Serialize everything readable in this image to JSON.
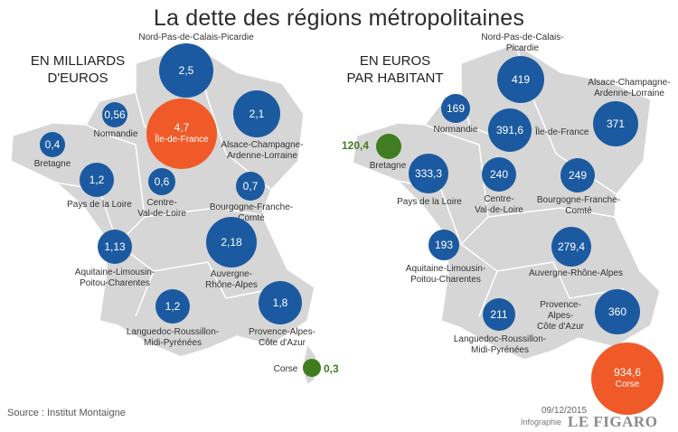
{
  "title": "La dette des régions métropolitaines",
  "left_map": {
    "heading": [
      "EN MILLIARDS",
      "D'EUROS"
    ],
    "regions": [
      {
        "id": "npdcp",
        "name": [
          "Nord-Pas-de-Calais-Picardie"
        ],
        "value": "2,5",
        "color": "blue"
      },
      {
        "id": "normandie",
        "name": [
          "Normandie"
        ],
        "value": "0,56",
        "color": "blue"
      },
      {
        "id": "idf",
        "name": [
          "Île-de-France"
        ],
        "value": "4,7",
        "color": "orange"
      },
      {
        "id": "acal",
        "name": [
          "Alsace-Champagne-",
          "Ardenne-Lorraine"
        ],
        "value": "2,1",
        "color": "blue"
      },
      {
        "id": "bretagne",
        "name": [
          "Bretagne"
        ],
        "value": "0,4",
        "color": "blue"
      },
      {
        "id": "pdl",
        "name": [
          "Pays de la Loire"
        ],
        "value": "1,2",
        "color": "blue"
      },
      {
        "id": "cvl",
        "name": [
          "Centre-",
          "Val-de-Loire"
        ],
        "value": "0,6",
        "color": "blue"
      },
      {
        "id": "bfc",
        "name": [
          "Bourgogne-Franche-Comté"
        ],
        "value": "0,7",
        "color": "blue"
      },
      {
        "id": "alpc",
        "name": [
          "Aquitaine-Limousin-",
          "Poitou-Charentes"
        ],
        "value": "1,13",
        "color": "blue"
      },
      {
        "id": "ara",
        "name": [
          "Auvergne-",
          "Rhône-Alpes"
        ],
        "value": "2,18",
        "color": "blue"
      },
      {
        "id": "lrmp",
        "name": [
          "Languedoc-Roussillon-",
          "Midi-Pyrénées"
        ],
        "value": "1,2",
        "color": "blue"
      },
      {
        "id": "paca",
        "name": [
          "Provence-Alpes-",
          "Côte d'Azur"
        ],
        "value": "1,8",
        "color": "blue"
      },
      {
        "id": "corse",
        "name": [
          "Corse"
        ],
        "value": "0,3",
        "color": "green"
      }
    ]
  },
  "right_map": {
    "heading": [
      "EN EUROS",
      "PAR HABITANT"
    ],
    "regions": [
      {
        "id": "npdcp",
        "name": [
          "Nord-Pas-de-Calais-",
          "Picardie"
        ],
        "value": "419",
        "color": "blue"
      },
      {
        "id": "normandie",
        "name": [
          "Normandie"
        ],
        "value": "169",
        "color": "blue"
      },
      {
        "id": "idf",
        "name": [
          "Île-de-France"
        ],
        "value": "391,6",
        "color": "blue"
      },
      {
        "id": "acal",
        "name": [
          "Alsace-Champagne-",
          "Ardenne-Lorraine"
        ],
        "value": "371",
        "color": "blue"
      },
      {
        "id": "bretagne",
        "name": [
          "Bretagne"
        ],
        "value": "120,4",
        "color": "green"
      },
      {
        "id": "pdl",
        "name": [
          "Pays de la Loire"
        ],
        "value": "333,3",
        "color": "blue"
      },
      {
        "id": "cvl",
        "name": [
          "Centre-",
          "Val-de-Loire"
        ],
        "value": "240",
        "color": "blue"
      },
      {
        "id": "bfc",
        "name": [
          "Bourgogne-Franche-Comté"
        ],
        "value": "249",
        "color": "blue"
      },
      {
        "id": "alpc",
        "name": [
          "Aquitaine-Limousin-",
          "Poitou-Charentes"
        ],
        "value": "193",
        "color": "blue"
      },
      {
        "id": "ara",
        "name": [
          "Auvergne-Rhône-Alpes"
        ],
        "value": "279,4",
        "color": "blue"
      },
      {
        "id": "lrmp",
        "name": [
          "Languedoc-Roussillon-",
          "Midi-Pyrénées"
        ],
        "value": "211",
        "color": "blue"
      },
      {
        "id": "paca",
        "name": [
          "Provence-Alpes-",
          "Côte d'Azur"
        ],
        "value": "360",
        "color": "blue"
      },
      {
        "id": "corse",
        "name": [
          "Corse"
        ],
        "value": "934,6",
        "color": "orange"
      }
    ]
  },
  "colors": {
    "blue": "#1b5aa0",
    "orange": "#f05a28",
    "green": "#3f7d20",
    "land": "#d6d6d6"
  },
  "source": "Source : Institut Montaigne",
  "date": "09/12/2015",
  "credit": "Infographie",
  "logo": "LE FIGARO"
}
